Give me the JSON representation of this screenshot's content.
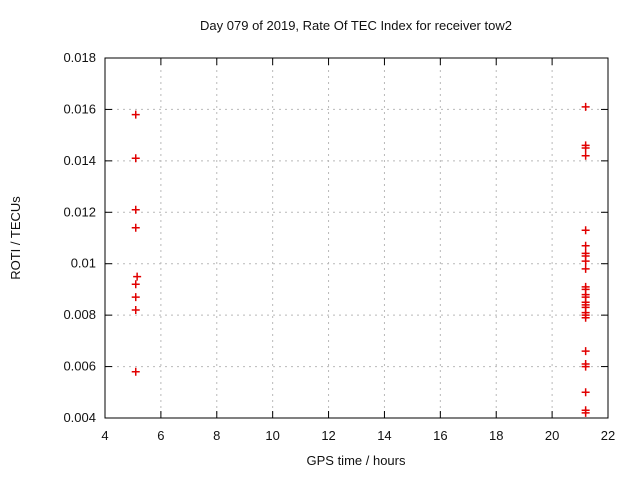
{
  "chart_data": {
    "type": "scatter",
    "title": "Day 079 of 2019, Rate Of TEC Index for receiver tow2",
    "xlabel": "GPS time / hours",
    "ylabel": "ROTI / TECUs",
    "xlim": [
      4,
      22
    ],
    "ylim": [
      0.004,
      0.018
    ],
    "grid": true,
    "legend_position": "none",
    "background": "#ffffff",
    "marker": {
      "shape": "plus",
      "color": "#e10000"
    },
    "xticks": [
      {
        "value": 4,
        "label": "4"
      },
      {
        "value": 6,
        "label": "6"
      },
      {
        "value": 8,
        "label": "8"
      },
      {
        "value": 10,
        "label": "10"
      },
      {
        "value": 12,
        "label": "12"
      },
      {
        "value": 14,
        "label": "14"
      },
      {
        "value": 16,
        "label": "16"
      },
      {
        "value": 18,
        "label": "18"
      },
      {
        "value": 20,
        "label": "20"
      },
      {
        "value": 22,
        "label": "22"
      }
    ],
    "yticks": [
      {
        "value": 0.004,
        "label": "0.004"
      },
      {
        "value": 0.006,
        "label": "0.006"
      },
      {
        "value": 0.008,
        "label": "0.008"
      },
      {
        "value": 0.01,
        "label": "0.01"
      },
      {
        "value": 0.012,
        "label": "0.012"
      },
      {
        "value": 0.014,
        "label": "0.014"
      },
      {
        "value": 0.016,
        "label": "0.016"
      },
      {
        "value": 0.018,
        "label": "0.018"
      }
    ],
    "series": [
      {
        "points": [
          [
            5.1,
            0.0158
          ],
          [
            5.1,
            0.0141
          ],
          [
            5.1,
            0.0121
          ],
          [
            5.1,
            0.0114
          ],
          [
            5.15,
            0.0095
          ],
          [
            5.1,
            0.0092
          ],
          [
            5.1,
            0.0087
          ],
          [
            5.1,
            0.0082
          ],
          [
            5.1,
            0.0058
          ],
          [
            21.2,
            0.0161
          ],
          [
            21.2,
            0.0146
          ],
          [
            21.2,
            0.0145
          ],
          [
            21.2,
            0.0142
          ],
          [
            21.2,
            0.0113
          ],
          [
            21.2,
            0.0107
          ],
          [
            21.2,
            0.0104
          ],
          [
            21.2,
            0.0103
          ],
          [
            21.2,
            0.0101
          ],
          [
            21.2,
            0.0098
          ],
          [
            21.2,
            0.0091
          ],
          [
            21.2,
            0.009
          ],
          [
            21.2,
            0.0088
          ],
          [
            21.2,
            0.0087
          ],
          [
            21.2,
            0.0085
          ],
          [
            21.2,
            0.0084
          ],
          [
            21.2,
            0.0083
          ],
          [
            21.2,
            0.0081
          ],
          [
            21.2,
            0.008
          ],
          [
            21.2,
            0.0079
          ],
          [
            21.2,
            0.0066
          ],
          [
            21.2,
            0.0061
          ],
          [
            21.2,
            0.006
          ],
          [
            21.2,
            0.005
          ],
          [
            21.2,
            0.0043
          ],
          [
            21.2,
            0.0042
          ]
        ]
      }
    ]
  }
}
